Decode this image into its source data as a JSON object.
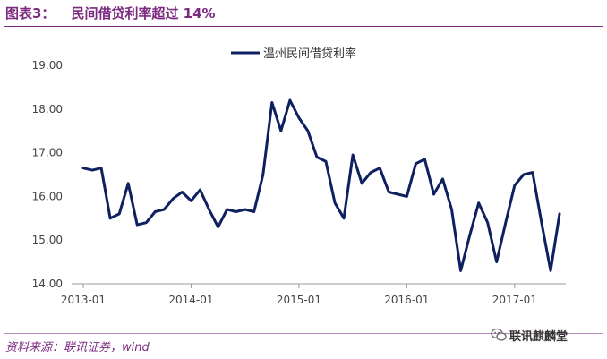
{
  "figure": {
    "label": "图表3：",
    "title": "民间借贷利率超过 14%"
  },
  "source": "资料来源：联讯证券，wind",
  "watermark": "联讯麒麟堂",
  "colors": {
    "accent": "#7b2a80",
    "series": "#0f2060"
  },
  "chart_data": {
    "type": "line",
    "legend_position": "top-center",
    "grid": false,
    "ylim": [
      14.0,
      19.0
    ],
    "yticks": [
      "14.00",
      "15.00",
      "16.00",
      "17.00",
      "18.00",
      "19.00"
    ],
    "xticks": [
      "2013-01",
      "2014-01",
      "2015-01",
      "2016-01",
      "2017-01"
    ],
    "x_start": "2013-01",
    "series": [
      {
        "name": "温州民间借贷利率",
        "values": [
          16.65,
          16.6,
          16.65,
          15.5,
          15.6,
          16.3,
          15.35,
          15.4,
          15.65,
          15.7,
          15.95,
          16.1,
          15.9,
          16.15,
          15.7,
          15.3,
          15.7,
          15.65,
          15.7,
          15.65,
          16.5,
          18.15,
          17.5,
          18.2,
          17.8,
          17.5,
          16.9,
          16.8,
          15.85,
          15.5,
          16.95,
          16.3,
          16.55,
          16.65,
          16.1,
          16.05,
          16.0,
          16.75,
          16.85,
          16.05,
          16.4,
          15.7,
          14.3,
          15.1,
          15.85,
          15.4,
          14.5,
          15.4,
          16.25,
          16.5,
          16.55,
          15.4,
          14.3,
          15.6
        ]
      }
    ]
  }
}
